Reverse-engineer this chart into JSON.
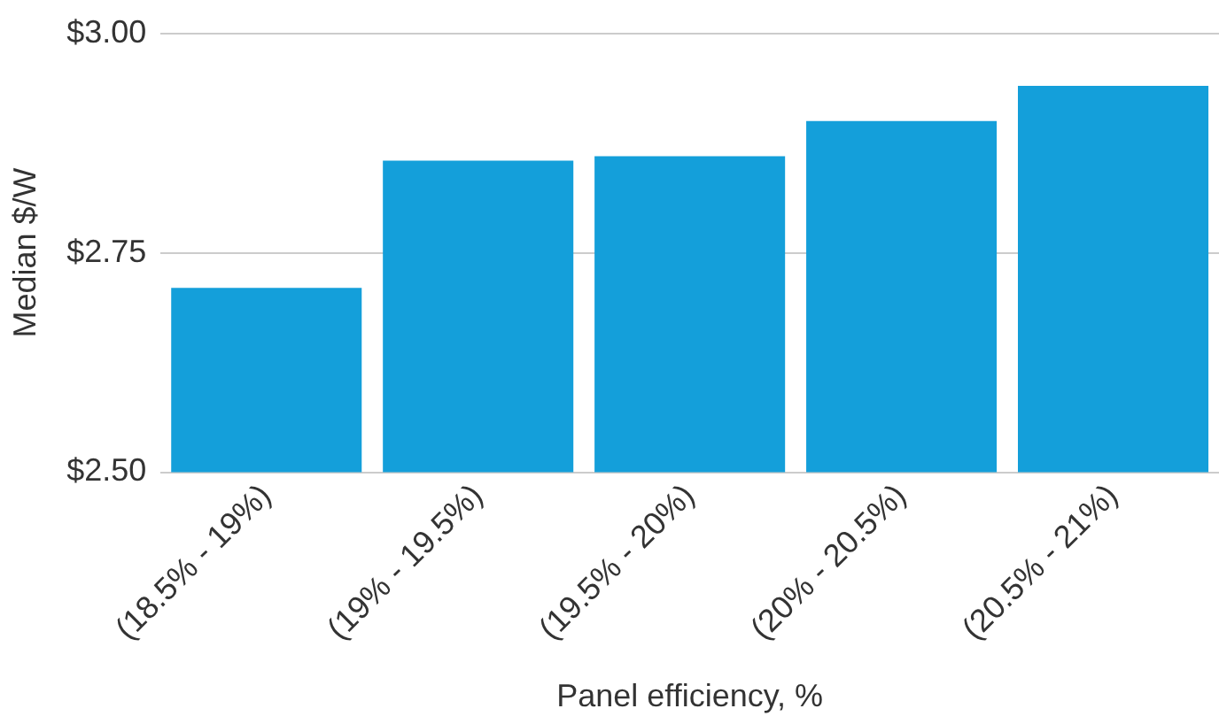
{
  "chart_data": {
    "type": "bar",
    "xlabel": "Panel efficiency, %",
    "ylabel": "Median $/W",
    "categories": [
      "(18.5% - 19%)",
      "(19% - 19.5%)",
      "(19.5% - 20%)",
      "(20% - 20.5%)",
      "(20.5% - 21%)"
    ],
    "values": [
      2.71,
      2.855,
      2.86,
      2.9,
      2.94
    ],
    "color": "#149fda",
    "ylim": [
      2.5,
      3.0
    ],
    "yticks": [
      {
        "value": 2.5,
        "label": "$2.50"
      },
      {
        "value": 2.75,
        "label": "$2.75"
      },
      {
        "value": 3.0,
        "label": "$3.00"
      }
    ],
    "grid": "y",
    "legend": false
  }
}
